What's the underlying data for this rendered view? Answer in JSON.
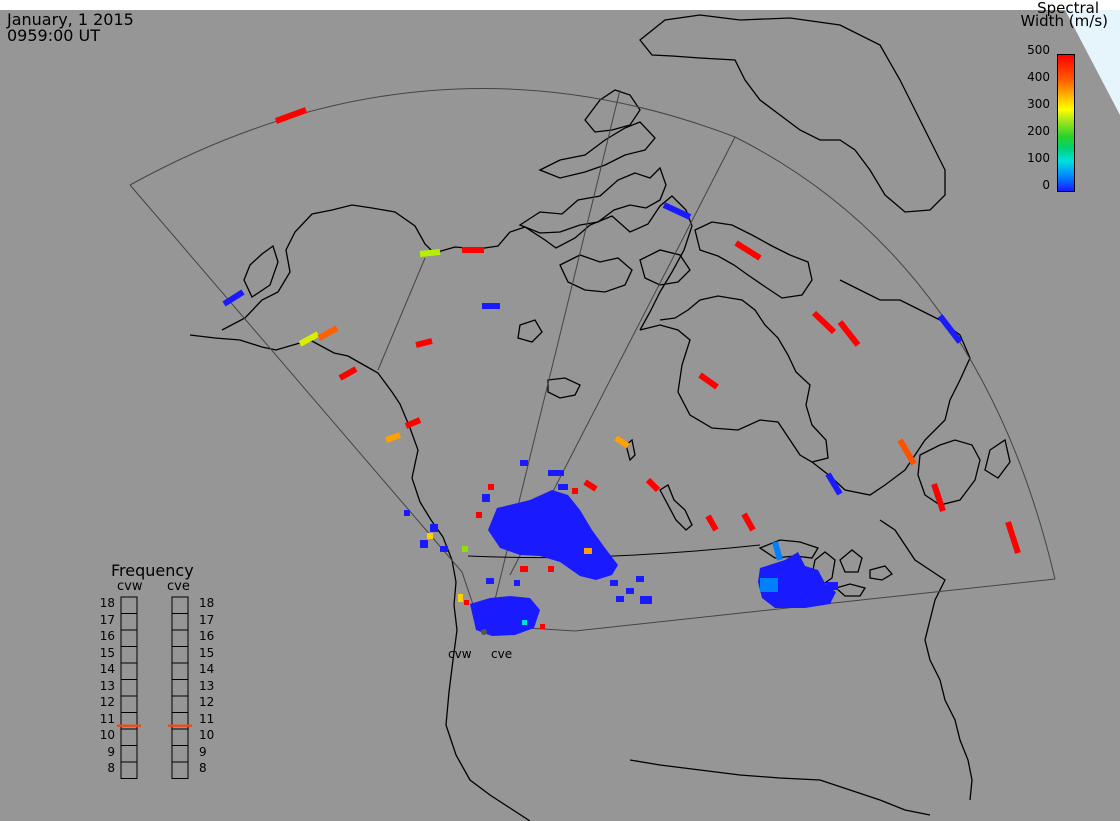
{
  "header": {
    "date": "January, 1 2015",
    "time": "0959:00 UT"
  },
  "colorbar": {
    "title_line1": "Spectral",
    "title_line2": "Width (m/s)",
    "ticks": [
      "500",
      "400",
      "300",
      "200",
      "100",
      "0"
    ],
    "range": [
      0,
      500
    ],
    "colors": [
      "#1a1aff",
      "#0080ff",
      "#00e0e0",
      "#2ad22a",
      "#ffff00",
      "#ffb400",
      "#ff5a00",
      "#ff0000"
    ]
  },
  "frequency_panel": {
    "title": "Frequency",
    "radars": [
      "cvw",
      "cve"
    ],
    "scale": [
      "18",
      "17",
      "16",
      "15",
      "14",
      "13",
      "12",
      "11",
      "10",
      "9",
      "8"
    ],
    "cvw_level_mhz": 10.7,
    "cve_level_mhz": 10.7
  },
  "radar_labels": {
    "west": "cvw",
    "east": "cve"
  },
  "colors": {
    "background": "#969696",
    "map_lines": "#000000",
    "fov_lines": "#444444",
    "frequency_marker": "#e05020"
  }
}
